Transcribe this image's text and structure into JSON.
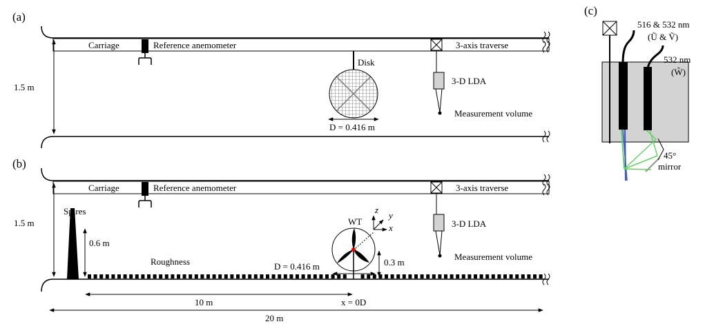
{
  "panels": {
    "a": "(a)",
    "b": "(b)",
    "c": "(c)"
  },
  "panel_a": {
    "carriage": "Carriage",
    "reference_anemometer": "Reference anemometer",
    "traverse": "3-axis traverse",
    "height": "1.5 m",
    "disk": "Disk",
    "diameter": "D = 0.416 m",
    "lda": "3-D LDA",
    "measurement_volume": "Measurement volume"
  },
  "panel_b": {
    "carriage": "Carriage",
    "reference_anemometer": "Reference anemometer",
    "traverse": "3-axis traverse",
    "height": "1.5 m",
    "spires": "Spires",
    "spire_height": "0.6 m",
    "roughness": "Roughness",
    "wt": "WT",
    "axis_z": "z",
    "axis_y": "y",
    "axis_x": "x",
    "hub_height": "0.3 m",
    "diameter": "D = 0.416 m",
    "lda": "3-D LDA",
    "measurement_volume": "Measurement volume",
    "dist_10": "10 m",
    "x_origin": "x = 0D",
    "dist_20": "20 m"
  },
  "panel_c": {
    "wavelength_uv": "516 & 532 nm",
    "uv_label": "(Ũ & Ṽ)",
    "wavelength_w": "532 nm",
    "w_label": "(W̃)",
    "mirror_angle": "45°",
    "mirror": "mirror"
  },
  "colors": {
    "probe_box": "#d3d3d3",
    "blue_beam": "#3a55c8",
    "green_beam": "#66d266",
    "hub_dot": "#dd0000",
    "disk_mesh": "#9a9a9a"
  }
}
